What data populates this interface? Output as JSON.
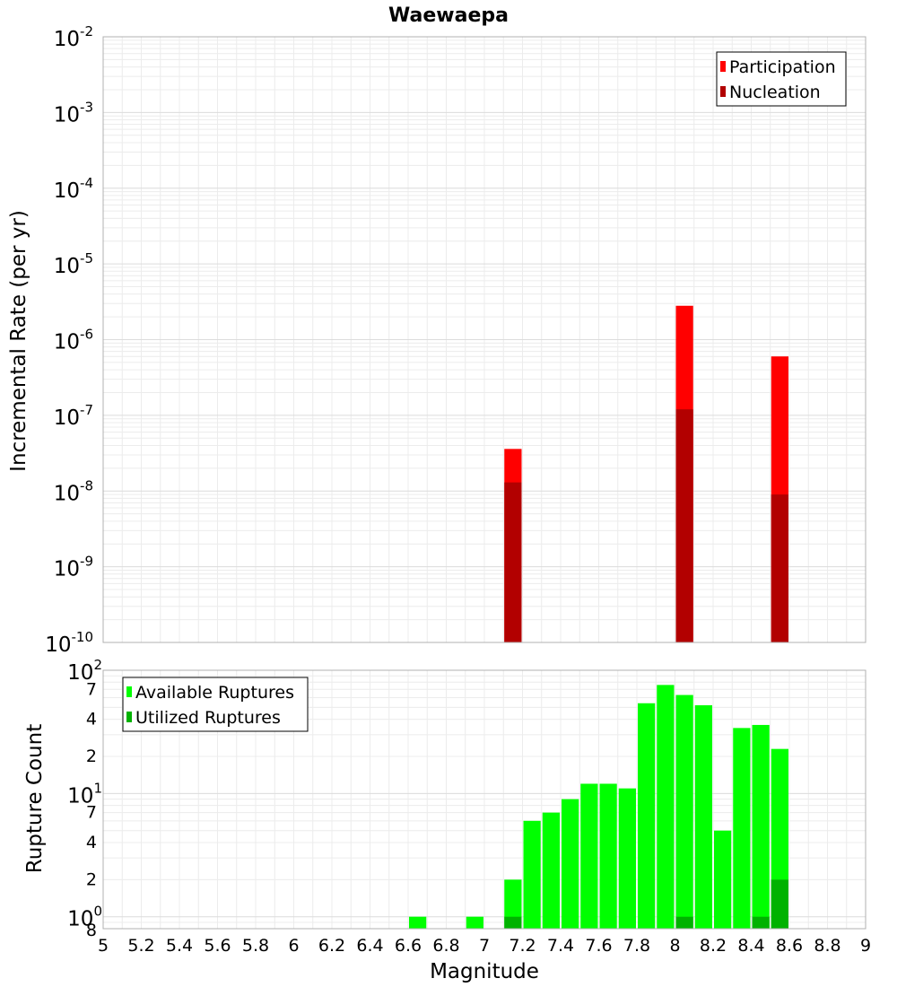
{
  "chart_data": [
    {
      "type": "bar",
      "title": "Waewaepa",
      "xlabel": "",
      "ylabel": "Incremental Rate (per yr)",
      "yscale": "log",
      "ylim": [
        1e-10,
        0.01
      ],
      "xlim": [
        5,
        9
      ],
      "bar_width": 0.1,
      "grid": true,
      "legend_position": "top-right",
      "y_ticks": [
        {
          "base": "10",
          "exp": "-10",
          "value": 1e-10
        },
        {
          "base": "10",
          "exp": "-9",
          "value": 1e-09
        },
        {
          "base": "10",
          "exp": "-8",
          "value": 1e-08
        },
        {
          "base": "10",
          "exp": "-7",
          "value": 1e-07
        },
        {
          "base": "10",
          "exp": "-6",
          "value": 1e-06
        },
        {
          "base": "10",
          "exp": "-5",
          "value": 1e-05
        },
        {
          "base": "10",
          "exp": "-4",
          "value": 0.0001
        },
        {
          "base": "10",
          "exp": "-3",
          "value": 0.001
        },
        {
          "base": "10",
          "exp": "-2",
          "value": 0.01
        }
      ],
      "series": [
        {
          "name": "Participation",
          "color": "#ff0000",
          "x": [
            7.15,
            8.05,
            8.55
          ],
          "values": [
            3.6e-08,
            2.8e-06,
            6e-07
          ]
        },
        {
          "name": "Nucleation",
          "color": "#b20000",
          "x": [
            7.15,
            8.05,
            8.55
          ],
          "values": [
            1.3e-08,
            1.2e-07,
            9e-09
          ]
        }
      ]
    },
    {
      "type": "bar",
      "title": "",
      "xlabel": "Magnitude",
      "ylabel": "Rupture Count",
      "yscale": "log",
      "ylim": [
        0.8,
        100
      ],
      "xlim": [
        5,
        9
      ],
      "bar_width": 0.1,
      "grid": true,
      "legend_position": "top-left",
      "x_ticks": [
        "5",
        "5.2",
        "5.4",
        "5.6",
        "5.8",
        "6",
        "6.2",
        "6.4",
        "6.6",
        "6.8",
        "7",
        "7.2",
        "7.4",
        "7.6",
        "7.8",
        "8",
        "8.2",
        "8.4",
        "8.6",
        "8.8",
        "9"
      ],
      "y_major_ticks": [
        {
          "base": "10",
          "exp": "0",
          "value": 1
        },
        {
          "base": "10",
          "exp": "1",
          "value": 10
        },
        {
          "base": "10",
          "exp": "2",
          "value": 100
        }
      ],
      "y_minor_ticks": [
        {
          "label": "8",
          "value": 0.8
        },
        {
          "label": "2",
          "value": 2
        },
        {
          "label": "4",
          "value": 4
        },
        {
          "label": "7",
          "value": 7
        },
        {
          "label": "2",
          "value": 20
        },
        {
          "label": "4",
          "value": 40
        },
        {
          "label": "7",
          "value": 70
        }
      ],
      "series": [
        {
          "name": "Available Ruptures",
          "color": "#00ff00",
          "x": [
            6.65,
            6.95,
            7.15,
            7.25,
            7.35,
            7.45,
            7.55,
            7.65,
            7.75,
            7.85,
            7.95,
            8.05,
            8.15,
            8.25,
            8.35,
            8.45,
            8.55
          ],
          "values": [
            1,
            1,
            2,
            6,
            7,
            9,
            12,
            12,
            11,
            54,
            76,
            63,
            52,
            5,
            34,
            36,
            23
          ]
        },
        {
          "name": "Utilized Ruptures",
          "color": "#00b200",
          "x": [
            7.15,
            8.05,
            8.45,
            8.55
          ],
          "values": [
            1,
            1,
            1,
            2
          ]
        }
      ]
    }
  ]
}
